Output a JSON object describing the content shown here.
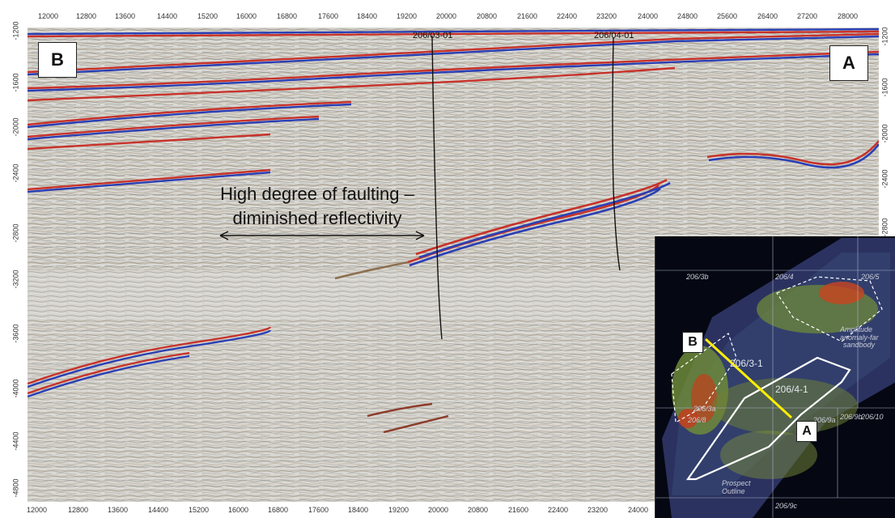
{
  "x_axis_labels": [
    "12000",
    "12800",
    "13600",
    "14400",
    "15200",
    "16000",
    "16800",
    "17600",
    "18400",
    "19200",
    "20000",
    "20800",
    "21600",
    "22400",
    "23200",
    "24000",
    "24800",
    "25600",
    "26400",
    "27200",
    "28000"
  ],
  "y_axis_labels": [
    "-1200",
    "-1600",
    "-2000",
    "-2400",
    "-2800",
    "-3200",
    "-3600",
    "-4000",
    "-4400",
    "-4800"
  ],
  "corner_labels": {
    "left": "B",
    "right": "A"
  },
  "wells": {
    "well1": "206/03-01",
    "well2": "206/04-01"
  },
  "annotation": {
    "line1": "High degree of faulting –",
    "line2": "diminished reflectivity"
  },
  "inset": {
    "blocks": [
      "206/3b",
      "206/4",
      "206/5",
      "206/3a",
      "206/8",
      "206/9a",
      "206/9b",
      "206/10",
      "206/9c"
    ],
    "wells": [
      "206/3-1",
      "206/4-1"
    ],
    "amplitude_label_1": "Amplitude",
    "amplitude_label_2": "anomaly-far",
    "amplitude_label_3": "sandbody",
    "prospect_label_1": "Prospect",
    "prospect_label_2": "Outline",
    "line_end_b": "B",
    "line_end_a": "A"
  },
  "colors": {
    "background": "#d7d6d1",
    "peak": "#c8322a",
    "trough": "#2a3fb5",
    "section_line": "#ffee00"
  }
}
